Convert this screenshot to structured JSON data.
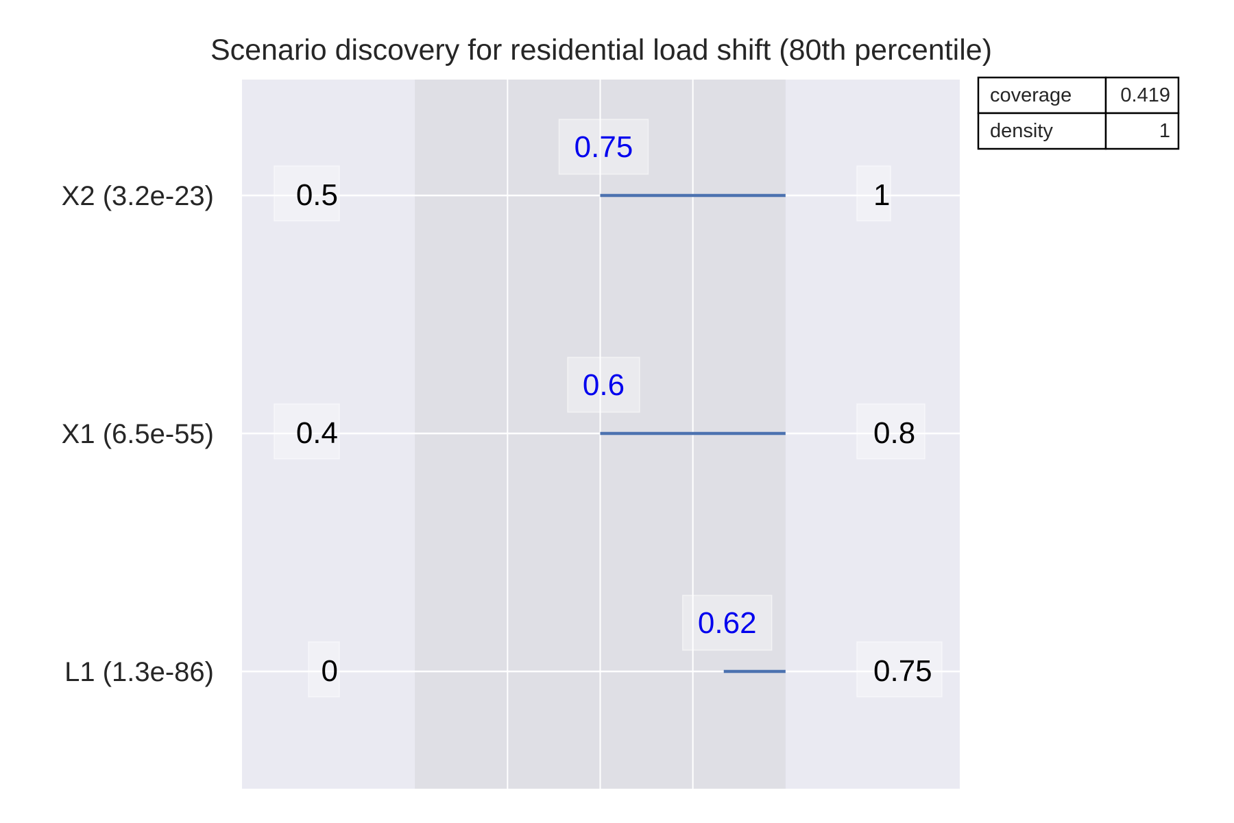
{
  "chart_data": {
    "type": "box-limits",
    "title": "Scenario discovery for residential load shift (80th percentile)",
    "colors": {
      "plot_bg": "#eaeaf2",
      "band": "#dfdfe5",
      "grid": "#ffffff",
      "bar": "#4c72b0",
      "box_label": "#0000ee",
      "lim_label": "#000000"
    },
    "grid": true,
    "normalized_range": [
      0,
      1
    ],
    "band_range": [
      0.14,
      0.86
    ],
    "rows": [
      {
        "name": "X2",
        "qp": "(3.2e-23)",
        "label": "X2 (3.2e-23)",
        "lower_limit": "0.5",
        "upper_limit": "1",
        "box_label": "0.75",
        "box_start": 0.5,
        "box_end": 0.86
      },
      {
        "name": "X1",
        "qp": "(6.5e-55)",
        "label": "X1 (6.5e-55)",
        "lower_limit": "0.4",
        "upper_limit": "0.8",
        "box_label": "0.6",
        "box_start": 0.5,
        "box_end": 0.86
      },
      {
        "name": "L1",
        "qp": "(1.3e-86)",
        "label": "L1 (1.3e-86)",
        "lower_limit": "0",
        "upper_limit": "0.75",
        "box_label": "0.62",
        "box_start": 0.74,
        "box_end": 0.86
      }
    ],
    "stats": [
      {
        "label": "coverage",
        "value": "0.419"
      },
      {
        "label": "density",
        "value": "1"
      }
    ]
  }
}
